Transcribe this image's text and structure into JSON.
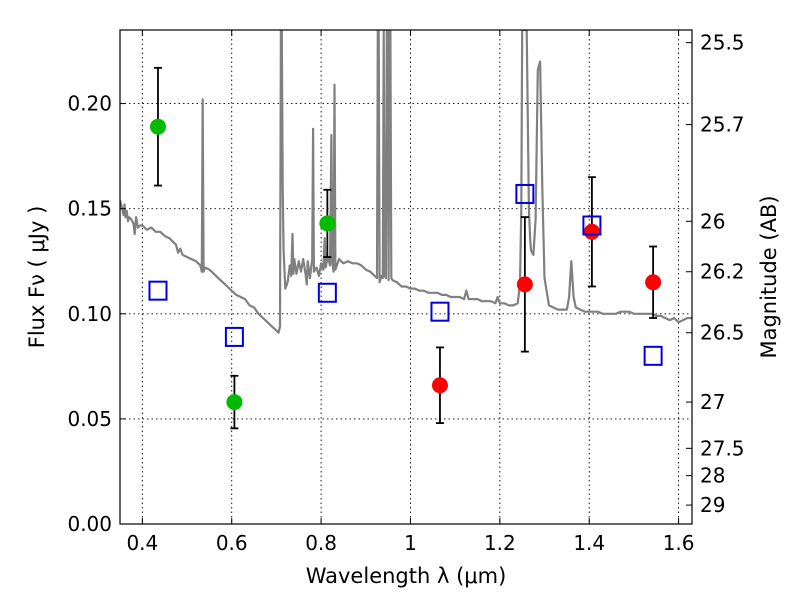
{
  "chart_data": {
    "type": "scatter",
    "title": "",
    "xlabel": "Wavelength  λ (μm)",
    "ylabel": "Flux  Fν  ( μJy )",
    "y2label": "Magnitude (AB)",
    "xlim": [
      0.35,
      1.63
    ],
    "ylim": [
      0.0,
      0.235
    ],
    "grid": true,
    "x_ticks": [
      0.4,
      0.6,
      0.8,
      1.0,
      1.2,
      1.4,
      1.6
    ],
    "x_tick_labels": [
      "0.4",
      "0.6",
      "0.8",
      "1",
      "1.2",
      "1.4",
      "1.6"
    ],
    "y_ticks": [
      0.0,
      0.05,
      0.1,
      0.15,
      0.2
    ],
    "y_tick_labels": [
      "0.00",
      "0.05",
      "0.10",
      "0.15",
      "0.20"
    ],
    "y2_ticks": [
      {
        "flux": 0.229,
        "label": "25.5"
      },
      {
        "flux": 0.19,
        "label": "25.7"
      },
      {
        "flux": 0.144,
        "label": "26"
      },
      {
        "flux": 0.12,
        "label": "26.2"
      },
      {
        "flux": 0.091,
        "label": "26.5"
      },
      {
        "flux": 0.058,
        "label": "27"
      },
      {
        "flux": 0.036,
        "label": "27.5"
      },
      {
        "flux": 0.023,
        "label": "28"
      },
      {
        "flux": 0.009,
        "label": "29"
      }
    ],
    "series": [
      {
        "marker": "circle",
        "color": "#00bb00",
        "points": [
          {
            "x": 0.435,
            "y": 0.189,
            "err": 0.028
          },
          {
            "x": 0.606,
            "y": 0.058,
            "err": 0.0125
          },
          {
            "x": 0.814,
            "y": 0.143,
            "err": 0.016
          }
        ]
      },
      {
        "marker": "circle",
        "color": "#ff0000",
        "points": [
          {
            "x": 1.066,
            "y": 0.066,
            "err": 0.018
          },
          {
            "x": 1.256,
            "y": 0.114,
            "err": 0.032
          },
          {
            "x": 1.406,
            "y": 0.139,
            "err": 0.026
          },
          {
            "x": 1.543,
            "y": 0.115,
            "err": 0.017
          }
        ]
      },
      {
        "marker": "open-square",
        "color": "#0000dd",
        "points": [
          {
            "x": 0.435,
            "y": 0.111
          },
          {
            "x": 0.606,
            "y": 0.089
          },
          {
            "x": 0.814,
            "y": 0.11
          },
          {
            "x": 1.066,
            "y": 0.101
          },
          {
            "x": 1.256,
            "y": 0.157
          },
          {
            "x": 1.406,
            "y": 0.142
          },
          {
            "x": 1.543,
            "y": 0.08
          }
        ]
      }
    ],
    "spectrum": {
      "color": "#808080",
      "points": [
        [
          0.35,
          0.154
        ],
        [
          0.355,
          0.15
        ],
        [
          0.358,
          0.147
        ],
        [
          0.36,
          0.152
        ],
        [
          0.362,
          0.146
        ],
        [
          0.365,
          0.149
        ],
        [
          0.368,
          0.144
        ],
        [
          0.37,
          0.146
        ],
        [
          0.375,
          0.145
        ],
        [
          0.38,
          0.143
        ],
        [
          0.383,
          0.138
        ],
        [
          0.386,
          0.146
        ],
        [
          0.39,
          0.141
        ],
        [
          0.395,
          0.142
        ],
        [
          0.4,
          0.142
        ],
        [
          0.405,
          0.141
        ],
        [
          0.41,
          0.14
        ],
        [
          0.42,
          0.141
        ],
        [
          0.43,
          0.139
        ],
        [
          0.44,
          0.139
        ],
        [
          0.45,
          0.137
        ],
        [
          0.46,
          0.136
        ],
        [
          0.47,
          0.134
        ],
        [
          0.475,
          0.133
        ],
        [
          0.48,
          0.129
        ],
        [
          0.485,
          0.131
        ],
        [
          0.49,
          0.128
        ],
        [
          0.5,
          0.127
        ],
        [
          0.51,
          0.126
        ],
        [
          0.52,
          0.125
        ],
        [
          0.53,
          0.123
        ],
        [
          0.533,
          0.12
        ],
        [
          0.535,
          0.202
        ],
        [
          0.537,
          0.12
        ],
        [
          0.54,
          0.122
        ],
        [
          0.55,
          0.121
        ],
        [
          0.56,
          0.119
        ],
        [
          0.57,
          0.117
        ],
        [
          0.58,
          0.115
        ],
        [
          0.59,
          0.113
        ],
        [
          0.6,
          0.111
        ],
        [
          0.61,
          0.109
        ],
        [
          0.62,
          0.108
        ],
        [
          0.63,
          0.107
        ],
        [
          0.64,
          0.104
        ],
        [
          0.65,
          0.103
        ],
        [
          0.66,
          0.1
        ],
        [
          0.67,
          0.098
        ],
        [
          0.68,
          0.096
        ],
        [
          0.69,
          0.094
        ],
        [
          0.7,
          0.092
        ],
        [
          0.705,
          0.091
        ],
        [
          0.708,
          0.094
        ],
        [
          0.71,
          0.235
        ],
        [
          0.712,
          0.235
        ],
        [
          0.714,
          0.16
        ],
        [
          0.716,
          0.13
        ],
        [
          0.72,
          0.112
        ],
        [
          0.725,
          0.115
        ],
        [
          0.73,
          0.123
        ],
        [
          0.733,
          0.118
        ],
        [
          0.736,
          0.138
        ],
        [
          0.738,
          0.119
        ],
        [
          0.74,
          0.126
        ],
        [
          0.745,
          0.119
        ],
        [
          0.75,
          0.125
        ],
        [
          0.755,
          0.12
        ],
        [
          0.76,
          0.126
        ],
        [
          0.765,
          0.119
        ],
        [
          0.768,
          0.114
        ],
        [
          0.77,
          0.125
        ],
        [
          0.775,
          0.117
        ],
        [
          0.78,
          0.126
        ],
        [
          0.782,
          0.188
        ],
        [
          0.784,
          0.12
        ],
        [
          0.79,
          0.122
        ],
        [
          0.795,
          0.118
        ],
        [
          0.8,
          0.124
        ],
        [
          0.805,
          0.121
        ],
        [
          0.808,
          0.136
        ],
        [
          0.81,
          0.122
        ],
        [
          0.815,
          0.127
        ],
        [
          0.82,
          0.123
        ],
        [
          0.823,
          0.185
        ],
        [
          0.825,
          0.124
        ],
        [
          0.828,
          0.12
        ],
        [
          0.83,
          0.209
        ],
        [
          0.832,
          0.121
        ],
        [
          0.84,
          0.126
        ],
        [
          0.85,
          0.124
        ],
        [
          0.86,
          0.125
        ],
        [
          0.87,
          0.124
        ],
        [
          0.88,
          0.124
        ],
        [
          0.89,
          0.123
        ],
        [
          0.9,
          0.121
        ],
        [
          0.91,
          0.12
        ],
        [
          0.92,
          0.118
        ],
        [
          0.925,
          0.117
        ],
        [
          0.927,
          0.235
        ],
        [
          0.929,
          0.235
        ],
        [
          0.931,
          0.115
        ],
        [
          0.935,
          0.118
        ],
        [
          0.938,
          0.117
        ],
        [
          0.94,
          0.235
        ],
        [
          0.942,
          0.118
        ],
        [
          0.945,
          0.117
        ],
        [
          0.947,
          0.235
        ],
        [
          0.949,
          0.235
        ],
        [
          0.951,
          0.116
        ],
        [
          0.953,
          0.235
        ],
        [
          0.955,
          0.235
        ],
        [
          0.957,
          0.117
        ],
        [
          0.96,
          0.116
        ],
        [
          0.97,
          0.115
        ],
        [
          0.98,
          0.113
        ],
        [
          0.99,
          0.113
        ],
        [
          1.0,
          0.112
        ],
        [
          1.01,
          0.112
        ],
        [
          1.02,
          0.111
        ],
        [
          1.03,
          0.111
        ],
        [
          1.04,
          0.11
        ],
        [
          1.05,
          0.11
        ],
        [
          1.06,
          0.11
        ],
        [
          1.07,
          0.109
        ],
        [
          1.08,
          0.109
        ],
        [
          1.09,
          0.108
        ],
        [
          1.1,
          0.108
        ],
        [
          1.11,
          0.108
        ],
        [
          1.12,
          0.107
        ],
        [
          1.125,
          0.111
        ],
        [
          1.13,
          0.107
        ],
        [
          1.14,
          0.107
        ],
        [
          1.15,
          0.107
        ],
        [
          1.16,
          0.106
        ],
        [
          1.17,
          0.106
        ],
        [
          1.18,
          0.106
        ],
        [
          1.19,
          0.105
        ],
        [
          1.195,
          0.108
        ],
        [
          1.2,
          0.105
        ],
        [
          1.21,
          0.105
        ],
        [
          1.22,
          0.104
        ],
        [
          1.23,
          0.104
        ],
        [
          1.24,
          0.105
        ],
        [
          1.245,
          0.114
        ],
        [
          1.248,
          0.15
        ],
        [
          1.25,
          0.235
        ],
        [
          1.255,
          0.235
        ],
        [
          1.26,
          0.235
        ],
        [
          1.265,
          0.15
        ],
        [
          1.268,
          0.135
        ],
        [
          1.27,
          0.13
        ],
        [
          1.275,
          0.128
        ],
        [
          1.28,
          0.145
        ],
        [
          1.285,
          0.216
        ],
        [
          1.29,
          0.22
        ],
        [
          1.295,
          0.16
        ],
        [
          1.3,
          0.117
        ],
        [
          1.31,
          0.104
        ],
        [
          1.32,
          0.103
        ],
        [
          1.33,
          0.102
        ],
        [
          1.34,
          0.102
        ],
        [
          1.35,
          0.102
        ],
        [
          1.355,
          0.108
        ],
        [
          1.36,
          0.125
        ],
        [
          1.365,
          0.108
        ],
        [
          1.37,
          0.103
        ],
        [
          1.38,
          0.102
        ],
        [
          1.39,
          0.101
        ],
        [
          1.4,
          0.101
        ],
        [
          1.41,
          0.101
        ],
        [
          1.42,
          0.101
        ],
        [
          1.43,
          0.1
        ],
        [
          1.44,
          0.1
        ],
        [
          1.45,
          0.1
        ],
        [
          1.46,
          0.1
        ],
        [
          1.47,
          0.101
        ],
        [
          1.48,
          0.101
        ],
        [
          1.49,
          0.101
        ],
        [
          1.5,
          0.1
        ],
        [
          1.51,
          0.1
        ],
        [
          1.52,
          0.1
        ],
        [
          1.53,
          0.1
        ],
        [
          1.54,
          0.1
        ],
        [
          1.55,
          0.099
        ],
        [
          1.56,
          0.099
        ],
        [
          1.57,
          0.098
        ],
        [
          1.58,
          0.097
        ],
        [
          1.59,
          0.098
        ],
        [
          1.6,
          0.096
        ],
        [
          1.61,
          0.097
        ],
        [
          1.62,
          0.098
        ],
        [
          1.63,
          0.098
        ]
      ]
    }
  }
}
